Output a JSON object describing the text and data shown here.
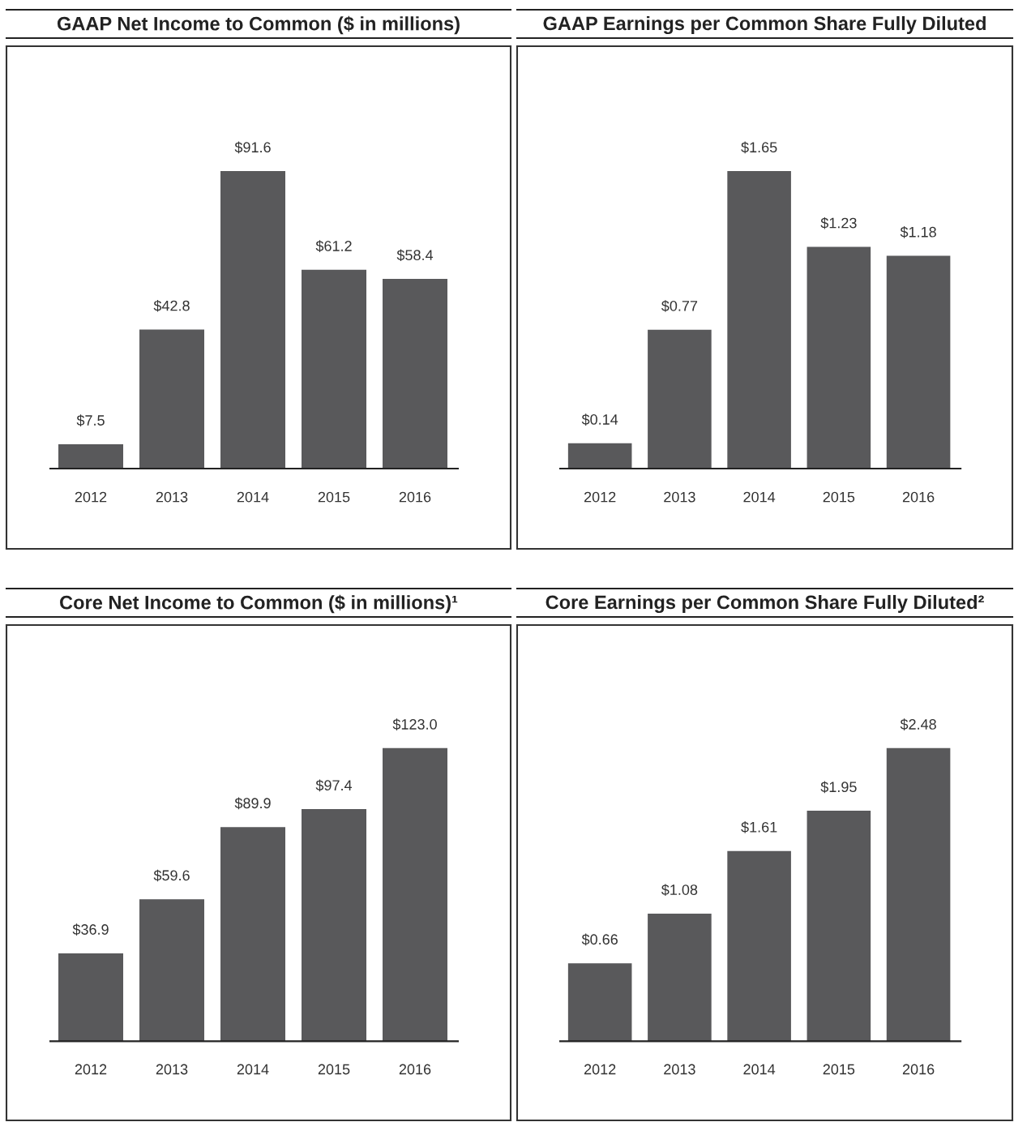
{
  "chart_data": [
    {
      "type": "bar",
      "title": "GAAP Net Income to Common ($ in millions)",
      "categories": [
        "2012",
        "2013",
        "2014",
        "2015",
        "2016"
      ],
      "values": [
        7.5,
        42.8,
        91.6,
        61.2,
        58.4
      ],
      "value_labels": [
        "$7.5",
        "$42.8",
        "$91.6",
        "$61.2",
        "$58.4"
      ],
      "color": "#59595b"
    },
    {
      "type": "bar",
      "title": "GAAP Earnings per Common Share Fully Diluted",
      "categories": [
        "2012",
        "2013",
        "2014",
        "2015",
        "2016"
      ],
      "values": [
        0.14,
        0.77,
        1.65,
        1.23,
        1.18
      ],
      "value_labels": [
        "$0.14",
        "$0.77",
        "$1.65",
        "$1.23",
        "$1.18"
      ],
      "color": "#59595b"
    },
    {
      "type": "bar",
      "title": "Core Net Income to Common ($ in millions)¹",
      "categories": [
        "2012",
        "2013",
        "2014",
        "2015",
        "2016"
      ],
      "values": [
        36.9,
        59.6,
        89.9,
        97.4,
        123.0
      ],
      "value_labels": [
        "$36.9",
        "$59.6",
        "$89.9",
        "$97.4",
        "$123.0"
      ],
      "color": "#59595b"
    },
    {
      "type": "bar",
      "title": "Core Earnings per Common Share Fully Diluted²",
      "categories": [
        "2012",
        "2013",
        "2014",
        "2015",
        "2016"
      ],
      "values": [
        0.66,
        1.08,
        1.61,
        1.95,
        2.48
      ],
      "value_labels": [
        "$0.66",
        "$1.08",
        "$1.61",
        "$1.95",
        "$2.48"
      ],
      "color": "#59595b"
    }
  ]
}
